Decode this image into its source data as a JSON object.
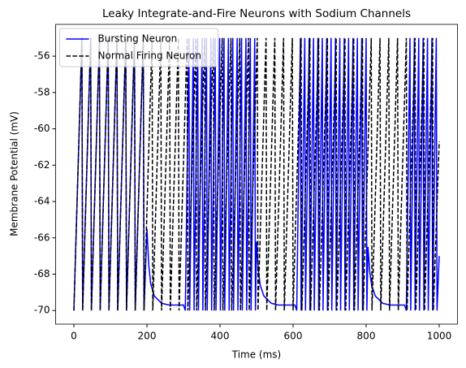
{
  "chart_data": {
    "type": "line",
    "title": "Leaky Integrate-and-Fire Neurons with Sodium Channels",
    "xlabel": "Time (ms)",
    "ylabel": "Membrane Potential (mV)",
    "xlim": [
      -50,
      1050
    ],
    "ylim": [
      -70.75,
      -54.25
    ],
    "xticks": [
      0,
      200,
      400,
      600,
      800,
      1000
    ],
    "yticks": [
      -70,
      -68,
      -66,
      -64,
      -62,
      -60,
      -58,
      -56
    ],
    "legend": "upper left",
    "series": [
      {
        "name": "Bursting Neuron",
        "color": "#0000ff",
        "linestyle": "solid",
        "x": [
          0,
          22,
          24,
          46,
          48,
          70,
          72,
          94,
          96,
          118,
          120,
          142,
          144,
          166,
          168,
          190,
          192,
          200,
          205,
          210,
          220,
          240,
          260,
          300,
          305,
          315,
          317,
          327,
          329,
          339,
          341,
          351,
          353,
          363,
          365,
          375,
          377,
          387,
          389,
          399,
          401,
          411,
          413,
          423,
          425,
          435,
          437,
          447,
          449,
          459,
          461,
          471,
          473,
          483,
          485,
          495,
          497,
          500,
          505,
          510,
          520,
          540,
          560,
          605,
          610,
          620,
          622,
          632,
          634,
          644,
          646,
          656,
          658,
          668,
          670,
          680,
          682,
          692,
          694,
          704,
          706,
          716,
          718,
          728,
          730,
          740,
          742,
          752,
          754,
          764,
          766,
          776,
          778,
          788,
          790,
          800,
          802,
          805,
          810,
          815,
          825,
          845,
          865,
          905,
          910,
          920,
          922,
          932,
          934,
          944,
          946,
          956,
          958,
          968,
          970,
          980,
          982,
          992,
          994,
          1000
        ],
        "values": [
          -70,
          -55,
          -70,
          -55,
          -70,
          -55,
          -70,
          -55,
          -70,
          -55,
          -70,
          -55,
          -70,
          -55,
          -70,
          -55,
          -70,
          -65.5,
          -67.5,
          -68.5,
          -69.2,
          -69.6,
          -69.7,
          -69.7,
          -70,
          -55,
          -70,
          -55,
          -70,
          -55,
          -70,
          -55,
          -70,
          -55,
          -70,
          -55,
          -70,
          -55,
          -70,
          -55,
          -70,
          -55,
          -70,
          -55,
          -70,
          -55,
          -70,
          -55,
          -70,
          -55,
          -70,
          -55,
          -70,
          -55,
          -70,
          -55,
          -70,
          -66.2,
          -67.8,
          -68.6,
          -69.2,
          -69.6,
          -69.7,
          -69.7,
          -70,
          -55,
          -70,
          -55,
          -70,
          -55,
          -70,
          -55,
          -70,
          -55,
          -70,
          -55,
          -70,
          -55,
          -70,
          -55,
          -70,
          -55,
          -70,
          -55,
          -70,
          -55,
          -70,
          -55,
          -70,
          -55,
          -70,
          -55,
          -70,
          -55,
          -70,
          -55,
          -70,
          -66.5,
          -67.9,
          -68.6,
          -69.2,
          -69.6,
          -69.7,
          -69.7,
          -70,
          -55,
          -70,
          -55,
          -70,
          -55,
          -70,
          -55,
          -70,
          -55,
          -70,
          -55,
          -70,
          -55,
          -70,
          -67
        ]
      },
      {
        "name": "Normal Firing Neuron",
        "color": "#000000",
        "linestyle": "dashed",
        "x": [
          0,
          22,
          24,
          46,
          48,
          70,
          72,
          94,
          96,
          118,
          120,
          142,
          144,
          166,
          168,
          190,
          192,
          214,
          216,
          238,
          240,
          262,
          264,
          286,
          288,
          310,
          312,
          334,
          336,
          358,
          360,
          382,
          384,
          406,
          408,
          430,
          432,
          454,
          456,
          478,
          480,
          502,
          504,
          526,
          528,
          550,
          552,
          574,
          576,
          598,
          600,
          622,
          624,
          646,
          648,
          670,
          672,
          694,
          696,
          718,
          720,
          742,
          744,
          766,
          768,
          790,
          792,
          814,
          816,
          838,
          840,
          862,
          864,
          886,
          888,
          910,
          912,
          934,
          936,
          958,
          960,
          982,
          984,
          1000
        ],
        "values": [
          -70,
          -55,
          -70,
          -55,
          -70,
          -55,
          -70,
          -55,
          -70,
          -55,
          -70,
          -55,
          -70,
          -55,
          -70,
          -55,
          -70,
          -55,
          -70,
          -55,
          -70,
          -55,
          -70,
          -55,
          -70,
          -55,
          -70,
          -55,
          -70,
          -55,
          -70,
          -55,
          -70,
          -55,
          -70,
          -55,
          -70,
          -55,
          -70,
          -55,
          -70,
          -55,
          -70,
          -55,
          -70,
          -55,
          -70,
          -55,
          -70,
          -55,
          -70,
          -55,
          -70,
          -55,
          -70,
          -55,
          -70,
          -55,
          -70,
          -55,
          -70,
          -55,
          -70,
          -55,
          -70,
          -55,
          -70,
          -55,
          -70,
          -55,
          -70,
          -55,
          -70,
          -55,
          -70,
          -55,
          -70,
          -55,
          -70,
          -55,
          -70,
          -55,
          -70,
          -60.7
        ]
      }
    ]
  }
}
